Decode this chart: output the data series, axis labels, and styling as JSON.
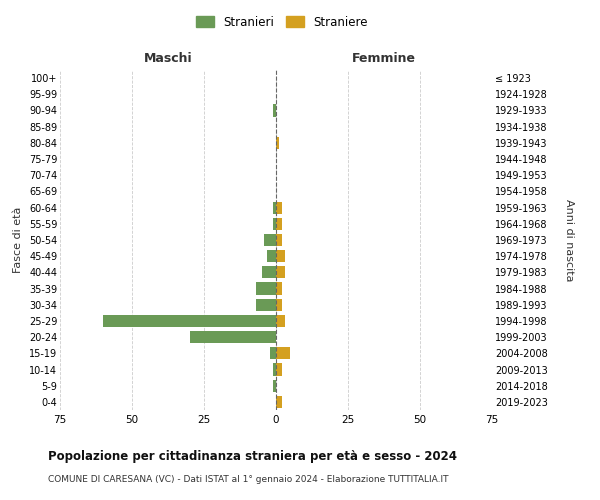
{
  "age_groups": [
    "0-4",
    "5-9",
    "10-14",
    "15-19",
    "20-24",
    "25-29",
    "30-34",
    "35-39",
    "40-44",
    "45-49",
    "50-54",
    "55-59",
    "60-64",
    "65-69",
    "70-74",
    "75-79",
    "80-84",
    "85-89",
    "90-94",
    "95-99",
    "100+"
  ],
  "birth_years": [
    "2019-2023",
    "2014-2018",
    "2009-2013",
    "2004-2008",
    "1999-2003",
    "1994-1998",
    "1989-1993",
    "1984-1988",
    "1979-1983",
    "1974-1978",
    "1969-1973",
    "1964-1968",
    "1959-1963",
    "1954-1958",
    "1949-1953",
    "1944-1948",
    "1939-1943",
    "1934-1938",
    "1929-1933",
    "1924-1928",
    "≤ 1923"
  ],
  "maschi_stranieri": [
    0,
    1,
    1,
    2,
    30,
    60,
    7,
    7,
    5,
    3,
    4,
    1,
    1,
    0,
    0,
    0,
    0,
    0,
    1,
    0,
    0
  ],
  "femmine_straniere": [
    2,
    0,
    2,
    5,
    0,
    3,
    2,
    2,
    3,
    3,
    2,
    2,
    2,
    0,
    0,
    0,
    1,
    0,
    0,
    0,
    0
  ],
  "color_maschi": "#6a9a56",
  "color_femmine": "#d4a020",
  "title": "Popolazione per cittadinanza straniera per età e sesso - 2024",
  "subtitle": "COMUNE DI CARESANA (VC) - Dati ISTAT al 1° gennaio 2024 - Elaborazione TUTTITALIA.IT",
  "legend_maschi": "Stranieri",
  "legend_femmine": "Straniere",
  "xlabel_left": "Maschi",
  "xlabel_right": "Femmine",
  "ylabel_left": "Fasce di età",
  "ylabel_right": "Anni di nascita",
  "xlim": 75,
  "background_color": "#ffffff",
  "grid_color": "#cccccc"
}
